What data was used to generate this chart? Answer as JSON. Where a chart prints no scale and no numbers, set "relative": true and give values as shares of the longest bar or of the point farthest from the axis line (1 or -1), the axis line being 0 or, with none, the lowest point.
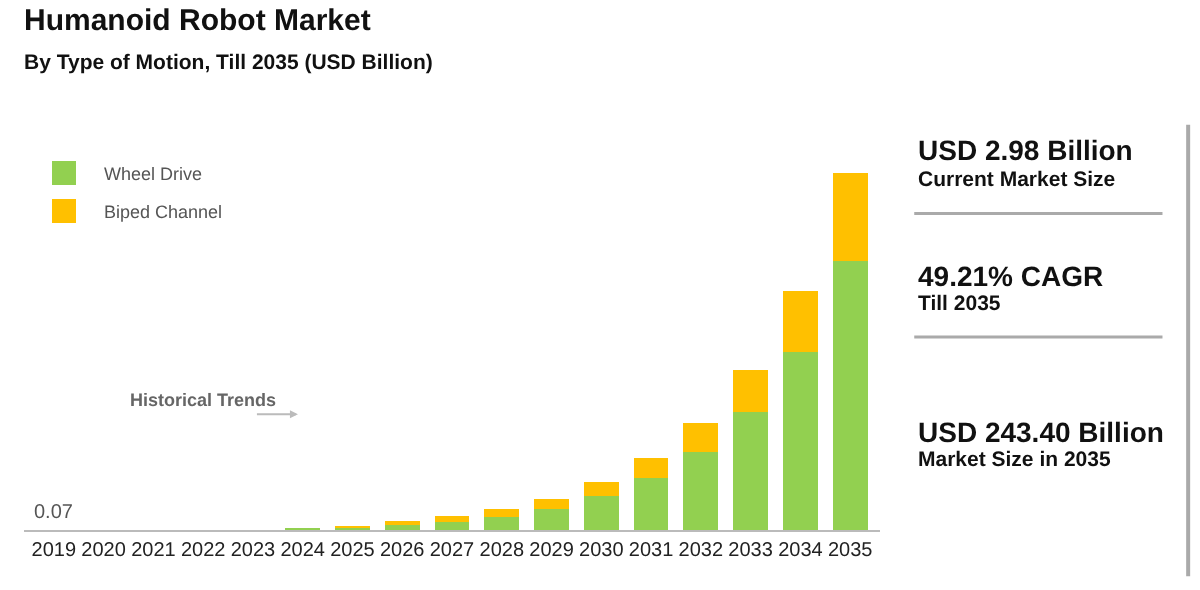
{
  "chart_data": {
    "type": "bar",
    "title": "Humanoid Robot Market",
    "subtitle": "By Type of Motion, Till 2035 (USD Billion)",
    "categories": [
      "2019",
      "2020",
      "2021",
      "2022",
      "2023",
      "2024",
      "2025",
      "2026",
      "2027",
      "2028",
      "2029",
      "2030",
      "2031",
      "2032",
      "2033",
      "2034",
      "2035"
    ],
    "series": [
      {
        "name": "Wheel Drive",
        "color": "#92d050",
        "values": [
          0,
          0,
          0,
          0,
          0,
          0.004,
          0.008,
          0.014,
          0.022,
          0.036,
          0.06,
          0.096,
          0.145,
          0.219,
          0.331,
          0.498,
          0.753
        ]
      },
      {
        "name": "Biped Channel",
        "color": "#ffc000",
        "values": [
          0,
          0,
          0,
          0,
          0,
          0,
          0.002,
          0.012,
          0.016,
          0.022,
          0.026,
          0.037,
          0.056,
          0.08,
          0.117,
          0.171,
          0.247
        ]
      }
    ],
    "stacked": true,
    "relative": true,
    "legend": "top left",
    "annotations": [
      {
        "text": "0.07",
        "x": "2019",
        "y": 0
      },
      "Historical Trends",
      "USD 2.98 Billion",
      "Current Market Size",
      "49.21% CAGR",
      "Till 2035",
      "USD 243.40 Billion",
      "Market Size in 2035"
    ]
  }
}
